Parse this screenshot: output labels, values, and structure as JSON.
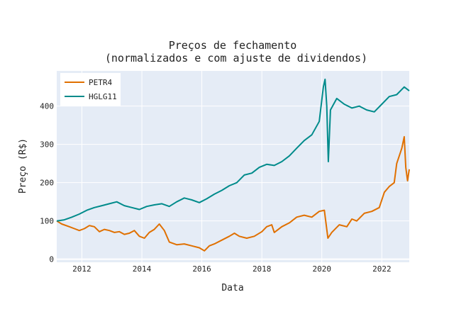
{
  "chart_data": {
    "type": "line",
    "title": "Preços de fechamento",
    "subtitle": "(normalizados e com ajuste de dividendos)",
    "xlabel": "Data",
    "ylabel": "Preço (R$)",
    "xlim": [
      "2011-03-01",
      "2022-12-01"
    ],
    "ylim": [
      -8,
      492
    ],
    "x_ticks": [
      "2012",
      "2014",
      "2016",
      "2018",
      "2020",
      "2022"
    ],
    "y_ticks": [
      0,
      100,
      200,
      300,
      400
    ],
    "grid": true,
    "legend_position": "top-left",
    "background_color": "#e5ecf6",
    "series": [
      {
        "name": "PETR4",
        "color": "#e07000",
        "points": [
          [
            "2011-03-01",
            100
          ],
          [
            "2011-05-01",
            92
          ],
          [
            "2011-08-01",
            85
          ],
          [
            "2011-10-01",
            80
          ],
          [
            "2011-12-01",
            75
          ],
          [
            "2012-02-01",
            80
          ],
          [
            "2012-04-01",
            88
          ],
          [
            "2012-06-01",
            85
          ],
          [
            "2012-08-01",
            72
          ],
          [
            "2012-10-01",
            78
          ],
          [
            "2012-12-01",
            75
          ],
          [
            "2013-02-01",
            70
          ],
          [
            "2013-04-01",
            72
          ],
          [
            "2013-06-01",
            65
          ],
          [
            "2013-08-01",
            68
          ],
          [
            "2013-10-01",
            75
          ],
          [
            "2013-12-01",
            60
          ],
          [
            "2014-02-01",
            55
          ],
          [
            "2014-04-01",
            70
          ],
          [
            "2014-06-01",
            78
          ],
          [
            "2014-08-01",
            92
          ],
          [
            "2014-10-01",
            75
          ],
          [
            "2014-12-01",
            45
          ],
          [
            "2015-03-01",
            38
          ],
          [
            "2015-06-01",
            40
          ],
          [
            "2015-09-01",
            35
          ],
          [
            "2015-12-01",
            30
          ],
          [
            "2016-02-01",
            22
          ],
          [
            "2016-04-01",
            35
          ],
          [
            "2016-06-01",
            40
          ],
          [
            "2016-09-01",
            50
          ],
          [
            "2016-12-01",
            60
          ],
          [
            "2017-02-01",
            68
          ],
          [
            "2017-04-01",
            60
          ],
          [
            "2017-07-01",
            55
          ],
          [
            "2017-10-01",
            60
          ],
          [
            "2018-01-01",
            72
          ],
          [
            "2018-03-01",
            85
          ],
          [
            "2018-05-01",
            90
          ],
          [
            "2018-06-01",
            70
          ],
          [
            "2018-09-01",
            85
          ],
          [
            "2018-12-01",
            95
          ],
          [
            "2019-03-01",
            110
          ],
          [
            "2019-06-01",
            115
          ],
          [
            "2019-09-01",
            110
          ],
          [
            "2019-12-01",
            125
          ],
          [
            "2020-02-01",
            128
          ],
          [
            "2020-03-15",
            55
          ],
          [
            "2020-05-01",
            70
          ],
          [
            "2020-08-01",
            90
          ],
          [
            "2020-11-01",
            85
          ],
          [
            "2021-01-01",
            105
          ],
          [
            "2021-03-01",
            100
          ],
          [
            "2021-06-01",
            120
          ],
          [
            "2021-09-01",
            125
          ],
          [
            "2021-12-01",
            135
          ],
          [
            "2022-02-01",
            175
          ],
          [
            "2022-04-01",
            190
          ],
          [
            "2022-06-01",
            200
          ],
          [
            "2022-07-01",
            250
          ],
          [
            "2022-08-01",
            270
          ],
          [
            "2022-09-01",
            290
          ],
          [
            "2022-10-01",
            320
          ],
          [
            "2022-10-20",
            240
          ],
          [
            "2022-11-10",
            205
          ],
          [
            "2022-12-01",
            235
          ]
        ]
      },
      {
        "name": "HGLG11",
        "color": "#008b8b",
        "points": [
          [
            "2011-03-01",
            100
          ],
          [
            "2011-06-01",
            103
          ],
          [
            "2011-09-01",
            110
          ],
          [
            "2011-12-01",
            118
          ],
          [
            "2012-03-01",
            128
          ],
          [
            "2012-06-01",
            135
          ],
          [
            "2012-09-01",
            140
          ],
          [
            "2012-12-01",
            145
          ],
          [
            "2013-03-01",
            150
          ],
          [
            "2013-06-01",
            140
          ],
          [
            "2013-09-01",
            135
          ],
          [
            "2013-12-01",
            130
          ],
          [
            "2014-03-01",
            138
          ],
          [
            "2014-06-01",
            142
          ],
          [
            "2014-09-01",
            145
          ],
          [
            "2014-12-01",
            138
          ],
          [
            "2015-03-01",
            150
          ],
          [
            "2015-06-01",
            160
          ],
          [
            "2015-09-01",
            155
          ],
          [
            "2015-12-01",
            148
          ],
          [
            "2016-03-01",
            158
          ],
          [
            "2016-06-01",
            170
          ],
          [
            "2016-09-01",
            180
          ],
          [
            "2016-12-01",
            192
          ],
          [
            "2017-03-01",
            200
          ],
          [
            "2017-06-01",
            220
          ],
          [
            "2017-09-01",
            225
          ],
          [
            "2017-12-01",
            240
          ],
          [
            "2018-03-01",
            248
          ],
          [
            "2018-06-01",
            245
          ],
          [
            "2018-09-01",
            255
          ],
          [
            "2018-12-01",
            270
          ],
          [
            "2019-03-01",
            290
          ],
          [
            "2019-06-01",
            310
          ],
          [
            "2019-09-01",
            325
          ],
          [
            "2019-12-01",
            360
          ],
          [
            "2020-01-20",
            450
          ],
          [
            "2020-02-10",
            470
          ],
          [
            "2020-03-01",
            400
          ],
          [
            "2020-03-20",
            255
          ],
          [
            "2020-04-15",
            390
          ],
          [
            "2020-07-01",
            420
          ],
          [
            "2020-10-01",
            405
          ],
          [
            "2021-01-01",
            395
          ],
          [
            "2021-04-01",
            400
          ],
          [
            "2021-07-01",
            390
          ],
          [
            "2021-10-01",
            385
          ],
          [
            "2022-01-01",
            405
          ],
          [
            "2022-04-01",
            425
          ],
          [
            "2022-07-01",
            430
          ],
          [
            "2022-10-01",
            450
          ],
          [
            "2022-12-01",
            440
          ]
        ]
      }
    ]
  }
}
